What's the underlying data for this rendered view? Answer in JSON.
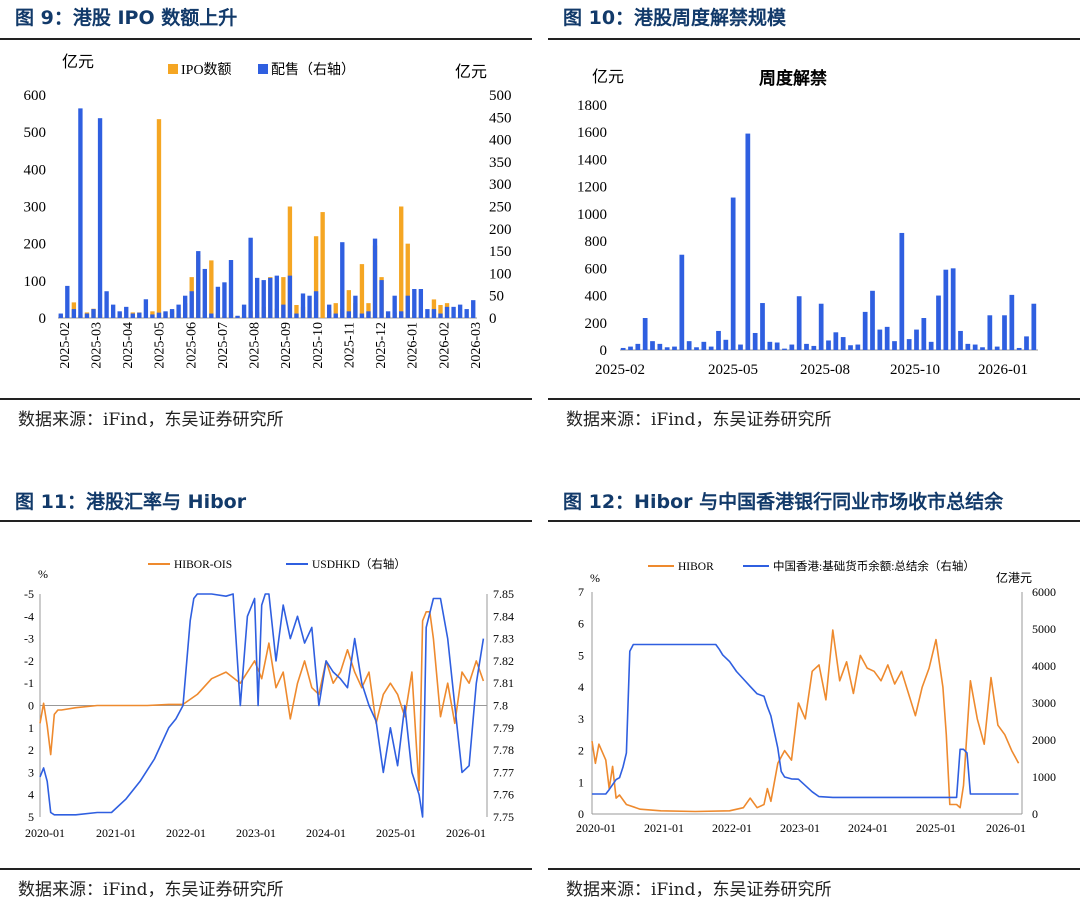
{
  "panels": [
    {
      "title": "图 9：港股 IPO 数额上升",
      "source": "数据来源：iFind，东吴证券研究所"
    },
    {
      "title": "图 10：港股周度解禁规模",
      "source": "数据来源：iFind，东吴证券研究所"
    },
    {
      "title": "图 11：港股汇率与 Hibor",
      "source": "数据来源：iFind，东吴证券研究所"
    },
    {
      "title": "图 12：Hibor 与中国香港银行同业市场收市总结余",
      "source": "数据来源：iFind，东吴证券研究所"
    }
  ],
  "chart_data": [
    {
      "type": "bar",
      "title": "",
      "ylabel": "亿元",
      "y2label": "亿元",
      "ylim": [
        0,
        600
      ],
      "y2lim": [
        0,
        500
      ],
      "yticks": [
        0,
        100,
        200,
        300,
        400,
        500,
        600
      ],
      "y2ticks": [
        0,
        50,
        100,
        150,
        200,
        250,
        300,
        350,
        400,
        450,
        500
      ],
      "xticks": [
        "2025-02",
        "2025-03",
        "2025-04",
        "2025-05",
        "2025-06",
        "2025-07",
        "2025-08",
        "2025-09",
        "2025-10",
        "2025-11",
        "2025-12",
        "2026-01",
        "2026-02",
        "2026-03"
      ],
      "legend": "top-center",
      "series": [
        {
          "name": "IPO数额",
          "color": "#f5a623",
          "axis": "left",
          "values": [
            8,
            5,
            42,
            7,
            15,
            25,
            10,
            0,
            3,
            15,
            0,
            15,
            15,
            0,
            18,
            535,
            15,
            20,
            12,
            40,
            110,
            170,
            20,
            155,
            10,
            5,
            12,
            5,
            5,
            18,
            15,
            30,
            110,
            25,
            110,
            300,
            35,
            30,
            20,
            220,
            285,
            20,
            40,
            25,
            75,
            40,
            145,
            40,
            195,
            110,
            5,
            15,
            300,
            200,
            20,
            5,
            0,
            50,
            35,
            40
          ]
        },
        {
          "name": "配售（右轴）",
          "color": "#2f5fe0",
          "axis": "right",
          "values": [
            10,
            72,
            20,
            470,
            10,
            20,
            448,
            60,
            30,
            15,
            25,
            10,
            12,
            42,
            8,
            12,
            15,
            20,
            30,
            50,
            60,
            150,
            110,
            10,
            70,
            80,
            130,
            5,
            30,
            180,
            90,
            85,
            90,
            95,
            30,
            95,
            10,
            55,
            50,
            60,
            0,
            30,
            10,
            170,
            15,
            50,
            10,
            15,
            178,
            85,
            15,
            50,
            15,
            50,
            65,
            65,
            20,
            20,
            10,
            25,
            25,
            30,
            20,
            40
          ]
        }
      ]
    },
    {
      "type": "bar",
      "title": "周度解禁",
      "ylabel": "亿元",
      "ylim": [
        0,
        1800
      ],
      "yticks": [
        0,
        200,
        400,
        600,
        800,
        1000,
        1200,
        1400,
        1600,
        1800
      ],
      "xticks": [
        "2025-02",
        "2025-05",
        "2025-08",
        "2025-10",
        "2026-01"
      ],
      "series": [
        {
          "name": "周度解禁",
          "color": "#2f5fe0",
          "values": [
            15,
            25,
            45,
            235,
            65,
            45,
            20,
            25,
            700,
            65,
            20,
            60,
            25,
            140,
            75,
            1120,
            40,
            1590,
            125,
            345,
            60,
            55,
            10,
            40,
            395,
            45,
            30,
            340,
            70,
            130,
            95,
            35,
            40,
            280,
            435,
            150,
            170,
            65,
            860,
            80,
            150,
            235,
            60,
            400,
            590,
            600,
            140,
            45,
            40,
            20,
            255,
            25,
            255,
            405,
            15,
            100,
            340
          ]
        }
      ]
    },
    {
      "type": "line",
      "title": "",
      "ylabel": "%",
      "ylim": [
        5,
        -5
      ],
      "y2lim": [
        7.75,
        7.85
      ],
      "yticks": [
        "-5",
        "-4",
        "-3",
        "-2",
        "-1",
        "0",
        "1",
        "2",
        "3",
        "4",
        "5"
      ],
      "y2ticks": [
        "7.85",
        "7.84",
        "7.83",
        "7.82",
        "7.81",
        "7.8",
        "7.79",
        "7.78",
        "7.77",
        "7.76",
        "7.75"
      ],
      "x": [
        "2020-01",
        "2021-01",
        "2022-01",
        "2023-01",
        "2024-01",
        "2025-01",
        "2026-01"
      ],
      "legend": "top-center",
      "series": [
        {
          "name": "HIBOR-OIS",
          "color": "#ee8a2e",
          "axis": "left",
          "x": [
            2020.0,
            2020.05,
            2020.1,
            2020.15,
            2020.2,
            2020.25,
            2020.3,
            2020.5,
            2020.8,
            2021.0,
            2021.5,
            2021.8,
            2022.0,
            2022.2,
            2022.4,
            2022.6,
            2022.8,
            2023.0,
            2023.1,
            2023.2,
            2023.3,
            2023.4,
            2023.5,
            2023.6,
            2023.7,
            2023.8,
            2023.9,
            2024.0,
            2024.1,
            2024.2,
            2024.3,
            2024.4,
            2024.5,
            2024.6,
            2024.7,
            2024.8,
            2024.9,
            2025.0,
            2025.1,
            2025.2,
            2025.3,
            2025.35,
            2025.4,
            2025.45,
            2025.5,
            2025.6,
            2025.7,
            2025.8,
            2025.9,
            2026.0,
            2026.1,
            2026.2
          ],
          "values": [
            0.8,
            -0.1,
            0.9,
            2.2,
            0.4,
            0.2,
            0.2,
            0.1,
            0.0,
            0.0,
            0.0,
            -0.05,
            -0.05,
            -0.5,
            -1.2,
            -1.5,
            -1.0,
            -2.0,
            -1.2,
            -2.8,
            -0.8,
            -1.5,
            0.6,
            -1.0,
            -2.0,
            -0.8,
            -0.5,
            -2.0,
            -1.0,
            -1.5,
            -2.5,
            -1.5,
            -0.8,
            -1.5,
            0.8,
            -0.5,
            -1.0,
            -0.5,
            0.5,
            -1.5,
            3.8,
            -3.8,
            -4.2,
            -4.2,
            -3.0,
            0.5,
            -1.0,
            0.8,
            -1.5,
            -1.0,
            -2.0,
            -1.1
          ]
        },
        {
          "name": "USDHKD（右轴）",
          "color": "#2f5fe0",
          "axis": "right",
          "x": [
            2020.0,
            2020.05,
            2020.1,
            2020.15,
            2020.2,
            2020.3,
            2020.5,
            2020.8,
            2021.0,
            2021.2,
            2021.4,
            2021.6,
            2021.8,
            2021.9,
            2022.0,
            2022.1,
            2022.15,
            2022.2,
            2022.4,
            2022.6,
            2022.7,
            2022.8,
            2022.9,
            2023.0,
            2023.05,
            2023.1,
            2023.15,
            2023.2,
            2023.3,
            2023.4,
            2023.5,
            2023.6,
            2023.7,
            2023.8,
            2023.9,
            2024.0,
            2024.1,
            2024.2,
            2024.3,
            2024.4,
            2024.5,
            2024.6,
            2024.7,
            2024.8,
            2024.9,
            2025.0,
            2025.1,
            2025.2,
            2025.3,
            2025.35,
            2025.4,
            2025.5,
            2025.6,
            2025.7,
            2025.8,
            2025.9,
            2026.0,
            2026.1,
            2026.2
          ],
          "values": [
            7.768,
            7.772,
            7.766,
            7.752,
            7.751,
            7.751,
            7.751,
            7.752,
            7.752,
            7.758,
            7.766,
            7.776,
            7.79,
            7.794,
            7.8,
            7.838,
            7.848,
            7.85,
            7.85,
            7.849,
            7.85,
            7.8,
            7.84,
            7.848,
            7.8,
            7.845,
            7.85,
            7.85,
            7.82,
            7.845,
            7.83,
            7.84,
            7.828,
            7.835,
            7.8,
            7.82,
            7.815,
            7.812,
            7.808,
            7.83,
            7.81,
            7.8,
            7.793,
            7.77,
            7.79,
            7.773,
            7.8,
            7.77,
            7.76,
            7.75,
            7.835,
            7.848,
            7.848,
            7.83,
            7.8,
            7.77,
            7.773,
            7.81,
            7.83
          ]
        }
      ]
    },
    {
      "type": "line",
      "title": "",
      "ylabel": "%",
      "y2label": "亿港元",
      "ylim": [
        0,
        7
      ],
      "y2lim": [
        0,
        6000
      ],
      "yticks": [
        "0",
        "1",
        "2",
        "3",
        "4",
        "5",
        "6",
        "7"
      ],
      "y2ticks": [
        "0",
        "1000",
        "2000",
        "3000",
        "4000",
        "5000",
        "6000"
      ],
      "x": [
        "2020-01",
        "2021-01",
        "2022-01",
        "2023-01",
        "2024-01",
        "2025-01",
        "2026-01"
      ],
      "legend": "top-center",
      "series": [
        {
          "name": "HIBOR",
          "color": "#ee8a2e",
          "axis": "left",
          "x": [
            2020.0,
            2020.05,
            2020.1,
            2020.2,
            2020.25,
            2020.3,
            2020.35,
            2020.4,
            2020.5,
            2020.7,
            2021.0,
            2021.5,
            2022.0,
            2022.2,
            2022.3,
            2022.4,
            2022.5,
            2022.55,
            2022.6,
            2022.7,
            2022.8,
            2022.9,
            2023.0,
            2023.1,
            2023.2,
            2023.3,
            2023.4,
            2023.5,
            2023.6,
            2023.7,
            2023.8,
            2023.9,
            2024.0,
            2024.1,
            2024.2,
            2024.3,
            2024.4,
            2024.5,
            2024.6,
            2024.7,
            2024.8,
            2024.9,
            2025.0,
            2025.1,
            2025.15,
            2025.2,
            2025.3,
            2025.35,
            2025.4,
            2025.5,
            2025.6,
            2025.7,
            2025.8,
            2025.9,
            2026.0,
            2026.1,
            2026.2
          ],
          "values": [
            2.3,
            1.6,
            2.2,
            1.7,
            0.8,
            1.5,
            0.5,
            0.6,
            0.3,
            0.15,
            0.1,
            0.08,
            0.1,
            0.2,
            0.5,
            0.2,
            0.3,
            0.8,
            0.4,
            1.6,
            2.0,
            1.7,
            3.5,
            3.0,
            4.5,
            4.7,
            3.6,
            5.8,
            4.2,
            4.8,
            3.8,
            5.0,
            4.6,
            4.5,
            4.2,
            4.7,
            4.1,
            4.5,
            3.8,
            3.1,
            4.0,
            4.6,
            5.5,
            4.0,
            2.5,
            0.3,
            0.3,
            0.2,
            0.9,
            4.2,
            3.0,
            2.2,
            4.3,
            2.8,
            2.5,
            2.0,
            1.6
          ]
        },
        {
          "name": "中国香港:基础货币余额:总结余（右轴）",
          "color": "#2f5fe0",
          "axis": "right",
          "x": [
            2020.0,
            2020.2,
            2020.25,
            2020.35,
            2020.4,
            2020.45,
            2020.5,
            2020.55,
            2020.6,
            2020.8,
            2021.0,
            2021.5,
            2021.8,
            2021.85,
            2021.9,
            2022.0,
            2022.1,
            2022.2,
            2022.3,
            2022.4,
            2022.5,
            2022.55,
            2022.6,
            2022.7,
            2022.75,
            2022.8,
            2022.9,
            2023.0,
            2023.2,
            2023.3,
            2023.5,
            2024.0,
            2024.5,
            2025.0,
            2025.3,
            2025.35,
            2025.4,
            2025.45,
            2025.5,
            2025.8,
            2026.0,
            2026.2
          ],
          "values": [
            540,
            540,
            660,
            930,
            980,
            1270,
            1650,
            4400,
            4580,
            4580,
            4580,
            4580,
            4580,
            4450,
            4300,
            4120,
            3850,
            3650,
            3450,
            3250,
            3180,
            2900,
            2650,
            1780,
            1150,
            1000,
            950,
            940,
            600,
            470,
            450,
            450,
            450,
            450,
            450,
            1750,
            1750,
            1650,
            540,
            540,
            540,
            540
          ]
        }
      ]
    }
  ]
}
